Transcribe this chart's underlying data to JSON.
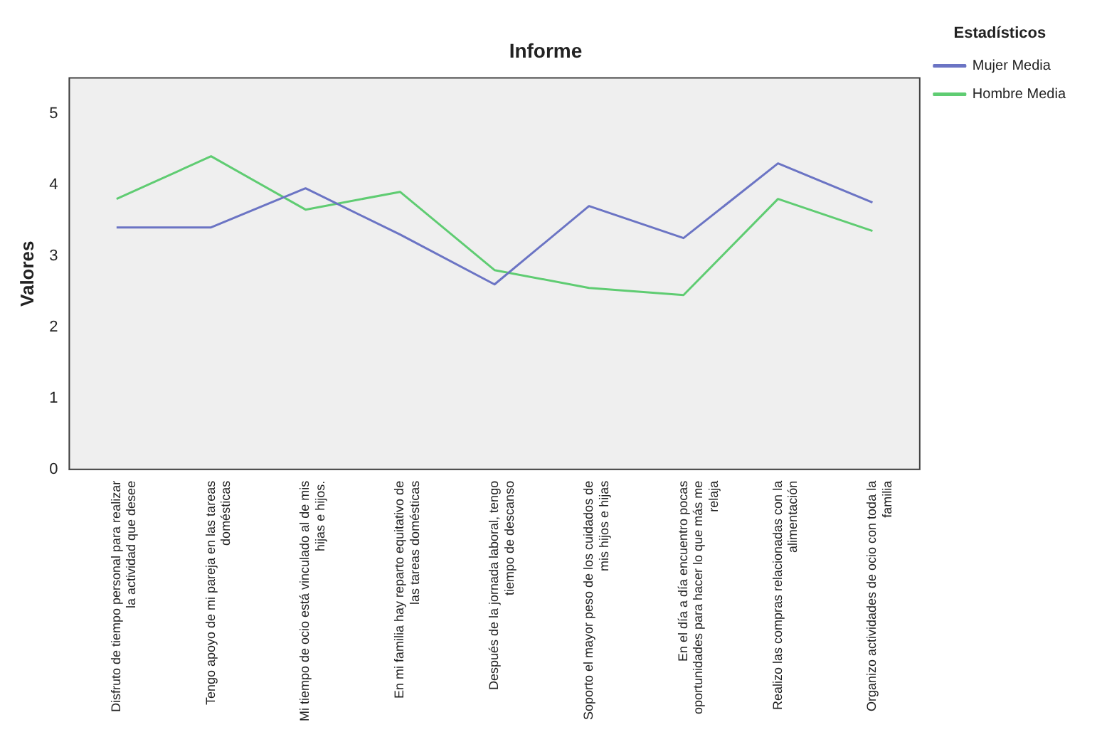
{
  "chart_data": {
    "type": "line",
    "title": "Informe",
    "ylabel": "Valores",
    "legend_title": "Estadísticos",
    "legend": "right",
    "grid": false,
    "marker": "none",
    "categories": [
      "Disfruto de tiempo personal para realizar la actividad que desee",
      "Tengo apoyo de mi pareja en las tareas domésticas",
      "Mi tiempo de ocio está vinculado al de mis hijas e hijos.",
      "En mi familia hay reparto equitativo de las tareas domésticas",
      "Después de la jornada laboral, tengo tiempo de descanso",
      "Soporto el mayor peso de los cuidados de mis hijos e hijas",
      "En el día a día encuentro pocas oportunidades para hacer lo que más me relaja",
      "Realizo las compras relacionadas con la alimentación",
      "Organizo actividades de ocio con toda la familia"
    ],
    "ylim": [
      0,
      5.5
    ],
    "yticks": [
      0,
      1,
      2,
      3,
      4,
      5
    ],
    "series": [
      {
        "name": "Mujer Media",
        "color": "#6b74c4",
        "values": [
          3.4,
          3.4,
          3.95,
          3.3,
          2.6,
          3.7,
          3.25,
          4.3,
          3.75
        ]
      },
      {
        "name": "Hombre Media",
        "color": "#5fcc72",
        "values": [
          3.8,
          4.4,
          3.65,
          3.9,
          2.8,
          2.55,
          2.45,
          3.8,
          3.35
        ]
      }
    ]
  }
}
